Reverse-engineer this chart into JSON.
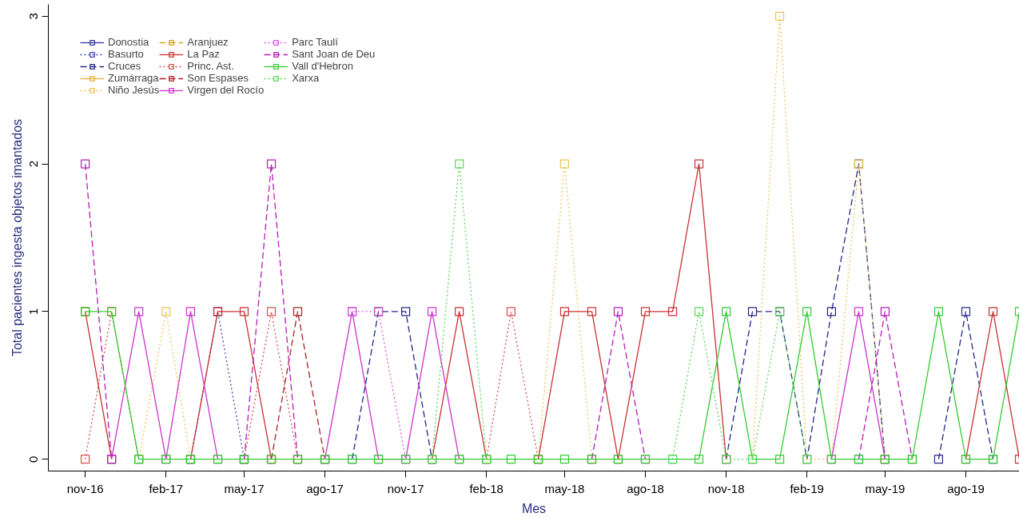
{
  "chart_data": {
    "type": "line",
    "xlabel": "Mes",
    "ylabel": "Total pacientes ingesta objetos imantados",
    "x": [
      "2016-11",
      "2016-12",
      "2017-01",
      "2017-02",
      "2017-03",
      "2017-04",
      "2017-05",
      "2017-06",
      "2017-07",
      "2017-08",
      "2017-09",
      "2017-10",
      "2017-11",
      "2017-12",
      "2018-01",
      "2018-02",
      "2018-03",
      "2018-04",
      "2018-05",
      "2018-06",
      "2018-07",
      "2018-08",
      "2018-09",
      "2018-10",
      "2018-11",
      "2018-12",
      "2019-01",
      "2019-02",
      "2019-03",
      "2019-04",
      "2019-05",
      "2019-06",
      "2019-07",
      "2019-08",
      "2019-09",
      "2019-10"
    ],
    "xlim": [
      "2016-09-20",
      "2019-10-01"
    ],
    "xticks": [
      {
        "value": "2016-11",
        "label": "nov-16"
      },
      {
        "value": "2017-02",
        "label": "feb-17"
      },
      {
        "value": "2017-05",
        "label": "may-17"
      },
      {
        "value": "2017-08",
        "label": "ago-17"
      },
      {
        "value": "2017-11",
        "label": "nov-17"
      },
      {
        "value": "2018-02",
        "label": "feb-18"
      },
      {
        "value": "2018-05",
        "label": "may-18"
      },
      {
        "value": "2018-08",
        "label": "ago-18"
      },
      {
        "value": "2018-11",
        "label": "nov-18"
      },
      {
        "value": "2019-02",
        "label": "feb-19"
      },
      {
        "value": "2019-05",
        "label": "may-19"
      },
      {
        "value": "2019-08",
        "label": "ago-19"
      }
    ],
    "ylim": [
      -0.08,
      3.08
    ],
    "yticks": [
      0,
      1,
      2,
      3
    ],
    "marker": "square",
    "legend": "top left",
    "grid": false,
    "series": [
      {
        "name": "Donostia",
        "color": "#3333a0",
        "line_style": "solid",
        "values": [
          null,
          null,
          null,
          null,
          null,
          null,
          null,
          null,
          null,
          null,
          null,
          null,
          null,
          null,
          null,
          null,
          null,
          null,
          null,
          null,
          null,
          null,
          null,
          null,
          null,
          null,
          null,
          null,
          null,
          null,
          null,
          null,
          null,
          null,
          null,
          null
        ]
      },
      {
        "name": "Basurto",
        "color": "#4545b4",
        "line_style": "dotted",
        "values": [
          null,
          null,
          null,
          null,
          0,
          1,
          0,
          null,
          null,
          null,
          null,
          null,
          null,
          null,
          null,
          null,
          null,
          null,
          null,
          null,
          null,
          null,
          null,
          null,
          null,
          null,
          null,
          null,
          null,
          null,
          null,
          null,
          null,
          null,
          null,
          null
        ]
      },
      {
        "name": "Cruces",
        "color": "#262688",
        "line_style": "dashed",
        "values": [
          null,
          null,
          null,
          null,
          null,
          null,
          null,
          null,
          null,
          null,
          0,
          1,
          1,
          0,
          null,
          null,
          null,
          null,
          null,
          null,
          null,
          null,
          null,
          null,
          0,
          1,
          1,
          0,
          1,
          2,
          0,
          null,
          0,
          1,
          0,
          null
        ]
      },
      {
        "name": "Zumárraga",
        "color": "#e0b030",
        "line_style": "solid",
        "values": [
          null,
          null,
          null,
          null,
          null,
          null,
          null,
          null,
          null,
          null,
          null,
          null,
          null,
          null,
          null,
          null,
          null,
          null,
          null,
          null,
          null,
          null,
          null,
          null,
          null,
          null,
          null,
          null,
          null,
          null,
          null,
          null,
          null,
          null,
          null,
          null
        ]
      },
      {
        "name": "Niño Jesús",
        "color": "#ecc458",
        "line_style": "dotted",
        "values": [
          null,
          null,
          0,
          1,
          0,
          null,
          null,
          null,
          null,
          null,
          null,
          null,
          null,
          null,
          null,
          null,
          null,
          0,
          2,
          0,
          null,
          null,
          null,
          null,
          null,
          0,
          3,
          0,
          0,
          2,
          0,
          null,
          null,
          null,
          null,
          null
        ]
      },
      {
        "name": "Aranjuez",
        "color": "#d4a424",
        "line_style": "dashed",
        "values": [
          null,
          null,
          null,
          null,
          null,
          null,
          null,
          null,
          null,
          null,
          null,
          null,
          null,
          null,
          null,
          null,
          null,
          null,
          null,
          null,
          null,
          null,
          null,
          null,
          null,
          null,
          null,
          null,
          null,
          null,
          null,
          null,
          null,
          null,
          null,
          null
        ]
      },
      {
        "name": "La Paz",
        "color": "#c83232",
        "line_style": "solid",
        "values": [
          1,
          0,
          null,
          null,
          0,
          1,
          1,
          0,
          null,
          null,
          null,
          null,
          null,
          0,
          1,
          0,
          null,
          0,
          1,
          1,
          0,
          1,
          1,
          2,
          0,
          null,
          null,
          null,
          null,
          null,
          null,
          null,
          null,
          0,
          1,
          0
        ]
      },
      {
        "name": "Princ. Ast.",
        "color": "#d85050",
        "line_style": "dotted",
        "values": [
          0,
          1,
          0,
          null,
          null,
          null,
          0,
          1,
          0,
          null,
          null,
          null,
          null,
          null,
          null,
          0,
          1,
          0,
          null,
          null,
          null,
          null,
          null,
          null,
          null,
          null,
          null,
          null,
          null,
          null,
          null,
          null,
          null,
          null,
          null,
          null
        ]
      },
      {
        "name": "Son Espases",
        "color": "#a82222",
        "line_style": "dashed",
        "values": [
          null,
          null,
          null,
          null,
          null,
          null,
          null,
          0,
          1,
          0,
          null,
          null,
          null,
          null,
          null,
          null,
          null,
          null,
          null,
          null,
          null,
          null,
          null,
          null,
          null,
          null,
          null,
          null,
          null,
          null,
          null,
          null,
          null,
          null,
          null,
          null
        ]
      },
      {
        "name": "Virgen del Rocío",
        "color": "#cc33cc",
        "line_style": "solid",
        "values": [
          null,
          0,
          1,
          0,
          1,
          0,
          null,
          null,
          null,
          0,
          1,
          0,
          0,
          1,
          0,
          null,
          null,
          null,
          null,
          null,
          null,
          null,
          null,
          null,
          null,
          null,
          null,
          null,
          0,
          1,
          0,
          null,
          null,
          null,
          null,
          null
        ]
      },
      {
        "name": "Parc Taulí",
        "color": "#dc58dc",
        "line_style": "dotted",
        "values": [
          null,
          null,
          null,
          null,
          null,
          null,
          null,
          null,
          null,
          0,
          1,
          1,
          0,
          null,
          null,
          null,
          null,
          null,
          null,
          null,
          null,
          null,
          null,
          null,
          null,
          null,
          null,
          null,
          null,
          null,
          null,
          null,
          null,
          null,
          null,
          null
        ]
      },
      {
        "name": "Sant Joan de Deu",
        "color": "#b81cb8",
        "line_style": "dashed",
        "values": [
          2,
          0,
          null,
          null,
          null,
          null,
          0,
          2,
          0,
          null,
          null,
          null,
          null,
          null,
          null,
          null,
          null,
          null,
          null,
          0,
          1,
          0,
          null,
          null,
          null,
          null,
          null,
          null,
          null,
          0,
          1,
          0,
          null,
          null,
          null,
          null
        ]
      },
      {
        "name": "Vall d'Hebron",
        "color": "#33cc33",
        "line_style": "solid",
        "values": [
          1,
          1,
          0,
          0,
          0,
          0,
          0,
          0,
          0,
          0,
          0,
          0,
          0,
          0,
          0,
          0,
          0,
          0,
          0,
          0,
          0,
          0,
          0,
          0,
          1,
          0,
          0,
          1,
          0,
          0,
          0,
          0,
          1,
          0,
          0,
          1
        ]
      },
      {
        "name": "Xarxa",
        "color": "#5ad85a",
        "line_style": "dotted",
        "values": [
          null,
          null,
          null,
          null,
          null,
          null,
          null,
          null,
          null,
          null,
          null,
          null,
          null,
          0,
          2,
          0,
          null,
          null,
          null,
          null,
          null,
          null,
          0,
          1,
          0,
          0,
          1,
          0,
          null,
          null,
          null,
          null,
          null,
          null,
          null,
          null
        ]
      }
    ]
  }
}
